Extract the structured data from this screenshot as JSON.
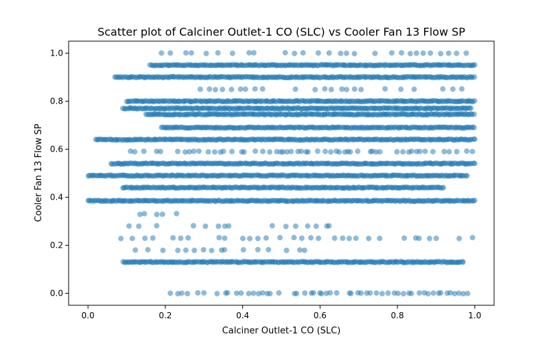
{
  "chart_data": {
    "type": "scatter",
    "title": "Scatter plot of Calciner Outlet-1 CO (SLC) vs Cooler Fan 13 Flow SP",
    "xlabel": "Calciner Outlet-1 CO (SLC)",
    "ylabel": "Cooler Fan 13 Flow SP",
    "xlim": [
      -0.05,
      1.05
    ],
    "ylim": [
      -0.05,
      1.05
    ],
    "xticks": [
      0.0,
      0.2,
      0.4,
      0.6,
      0.8,
      1.0
    ],
    "yticks": [
      0.0,
      0.2,
      0.4,
      0.6,
      0.8,
      1.0
    ],
    "xtick_labels": [
      "0.0",
      "0.2",
      "0.4",
      "0.6",
      "0.8",
      "1.0"
    ],
    "ytick_labels": [
      "0.0",
      "0.2",
      "0.4",
      "0.6",
      "0.8",
      "1.0"
    ],
    "grid": false,
    "marker_color": "#1f77b4",
    "marker_alpha": 0.5,
    "bands": [
      {
        "y": 1.0,
        "x_range": [
          0.19,
          1.0
        ],
        "density": "sparse"
      },
      {
        "y": 0.95,
        "x_range": [
          0.16,
          1.0
        ],
        "density": "dense"
      },
      {
        "y": 0.9,
        "x_range": [
          0.07,
          1.0
        ],
        "density": "dense"
      },
      {
        "y": 0.85,
        "x_range": [
          0.29,
          0.98
        ],
        "density": "sparse"
      },
      {
        "y": 0.8,
        "x_range": [
          0.1,
          1.0
        ],
        "density": "dense"
      },
      {
        "y": 0.77,
        "x_range": [
          0.09,
          0.99
        ],
        "density": "dense"
      },
      {
        "y": 0.745,
        "x_range": [
          0.15,
          1.0
        ],
        "density": "dense"
      },
      {
        "y": 0.69,
        "x_range": [
          0.19,
          1.0
        ],
        "density": "dense"
      },
      {
        "y": 0.64,
        "x_range": [
          0.02,
          1.0
        ],
        "density": "dense"
      },
      {
        "y": 0.59,
        "x_range": [
          0.11,
          1.0
        ],
        "density": "medium"
      },
      {
        "y": 0.54,
        "x_range": [
          0.06,
          1.0
        ],
        "density": "dense"
      },
      {
        "y": 0.49,
        "x_range": [
          0.0,
          0.98
        ],
        "density": "dense"
      },
      {
        "y": 0.44,
        "x_range": [
          0.09,
          0.92
        ],
        "density": "dense"
      },
      {
        "y": 0.385,
        "x_range": [
          0.0,
          1.0
        ],
        "density": "dense"
      },
      {
        "y": 0.33,
        "x_range": [
          0.13,
          0.23
        ],
        "density": "sparse"
      },
      {
        "y": 0.28,
        "x_range": [
          0.09,
          0.65
        ],
        "density": "sparse"
      },
      {
        "y": 0.23,
        "x_range": [
          0.08,
          1.0
        ],
        "density": "sparse"
      },
      {
        "y": 0.18,
        "x_range": [
          0.12,
          0.56
        ],
        "density": "sparse"
      },
      {
        "y": 0.13,
        "x_range": [
          0.09,
          0.97
        ],
        "density": "dense"
      },
      {
        "y": 0.0,
        "x_range": [
          0.2,
          0.99
        ],
        "density": "medium"
      }
    ]
  }
}
